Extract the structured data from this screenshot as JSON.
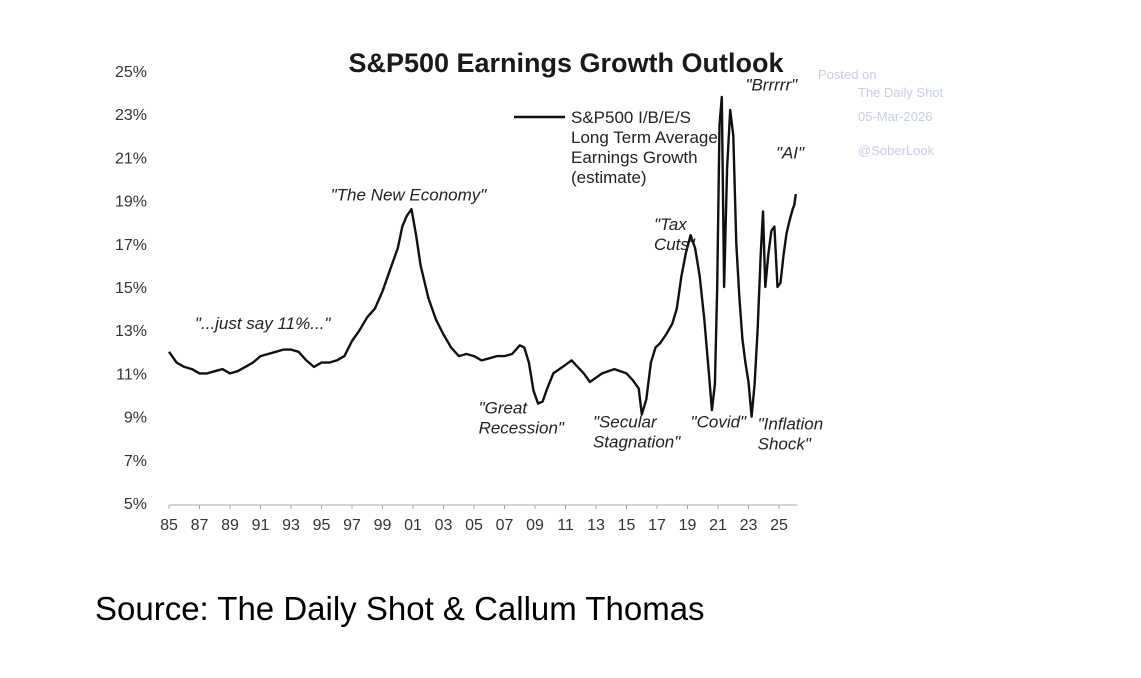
{
  "source": "Source: The Daily Shot & Callum Thomas",
  "watermark": [
    "Posted on",
    "The Daily Shot",
    "05-Mar-2026",
    "@SoberLook"
  ],
  "chart_data": {
    "type": "line",
    "title": "S&P500 Earnings Growth Outlook",
    "xlabel": "",
    "ylabel": "",
    "x_range": [
      1985,
      2026.2
    ],
    "ylim": [
      5,
      25
    ],
    "y_ticks": [
      "5%",
      "7%",
      "9%",
      "11%",
      "13%",
      "15%",
      "17%",
      "19%",
      "21%",
      "23%",
      "25%"
    ],
    "x_ticks": [
      "85",
      "87",
      "89",
      "91",
      "93",
      "95",
      "97",
      "99",
      "01",
      "03",
      "05",
      "07",
      "09",
      "11",
      "13",
      "15",
      "17",
      "19",
      "21",
      "23",
      "25"
    ],
    "grid": false,
    "legend_position": "top-center",
    "series": [
      {
        "name": "S&P500 I/B/E/S Long Term Average Earnings Growth (estimate)",
        "color": "#111111",
        "x": [
          1985.0,
          1985.5,
          1986.0,
          1986.5,
          1987.0,
          1987.5,
          1988.0,
          1988.5,
          1989.0,
          1989.5,
          1990.0,
          1990.5,
          1991.0,
          1991.5,
          1992.0,
          1992.5,
          1993.0,
          1993.5,
          1994.0,
          1994.5,
          1995.0,
          1995.5,
          1996.0,
          1996.5,
          1997.0,
          1997.5,
          1998.0,
          1998.5,
          1999.0,
          1999.5,
          2000.0,
          2000.3,
          2000.6,
          2000.9,
          2001.2,
          2001.5,
          2002.0,
          2002.5,
          2003.0,
          2003.5,
          2004.0,
          2004.5,
          2005.0,
          2005.5,
          2006.0,
          2006.5,
          2007.0,
          2007.5,
          2008.0,
          2008.3,
          2008.6,
          2008.9,
          2009.2,
          2009.5,
          2009.8,
          2010.2,
          2010.6,
          2011.0,
          2011.4,
          2011.8,
          2012.2,
          2012.6,
          2013.0,
          2013.4,
          2013.8,
          2014.2,
          2014.6,
          2015.0,
          2015.4,
          2015.8,
          2016.0,
          2016.3,
          2016.6,
          2016.9,
          2017.2,
          2017.6,
          2018.0,
          2018.3,
          2018.6,
          2018.9,
          2019.2,
          2019.5,
          2019.8,
          2020.1,
          2020.4,
          2020.6,
          2020.8,
          2020.95,
          2021.1,
          2021.25,
          2021.4,
          2021.6,
          2021.8,
          2022.0,
          2022.2,
          2022.4,
          2022.6,
          2022.8,
          2023.0,
          2023.2,
          2023.4,
          2023.6,
          2023.8,
          2023.95,
          2024.1,
          2024.3,
          2024.5,
          2024.7,
          2024.9,
          2025.1,
          2025.3,
          2025.5,
          2025.7,
          2025.9,
          2026.0,
          2026.1
        ],
        "values": [
          12.0,
          11.5,
          11.3,
          11.2,
          11.0,
          11.0,
          11.1,
          11.2,
          11.0,
          11.1,
          11.3,
          11.5,
          11.8,
          11.9,
          12.0,
          12.1,
          12.1,
          12.0,
          11.6,
          11.3,
          11.5,
          11.5,
          11.6,
          11.8,
          12.5,
          13.0,
          13.6,
          14.0,
          14.8,
          15.8,
          16.8,
          17.8,
          18.3,
          18.6,
          17.4,
          16.0,
          14.5,
          13.5,
          12.8,
          12.2,
          11.8,
          11.9,
          11.8,
          11.6,
          11.7,
          11.8,
          11.8,
          11.9,
          12.3,
          12.2,
          11.5,
          10.2,
          9.6,
          9.7,
          10.3,
          11.0,
          11.2,
          11.4,
          11.6,
          11.3,
          11.0,
          10.6,
          10.8,
          11.0,
          11.1,
          11.2,
          11.1,
          11.0,
          10.7,
          10.3,
          9.1,
          9.8,
          11.5,
          12.2,
          12.4,
          12.8,
          13.3,
          14.0,
          15.5,
          16.6,
          17.4,
          16.8,
          15.5,
          13.5,
          11.0,
          9.3,
          10.5,
          15.0,
          22.5,
          23.8,
          15.0,
          20.5,
          23.2,
          22.0,
          17.0,
          14.5,
          12.6,
          11.5,
          10.6,
          9.0,
          10.5,
          13.0,
          16.5,
          18.5,
          15.0,
          16.5,
          17.6,
          17.8,
          15.0,
          15.2,
          16.5,
          17.5,
          18.1,
          18.6,
          18.8,
          19.3
        ]
      }
    ],
    "annotations": [
      {
        "lines": [
          "\"...just say 11%...\""
        ],
        "x": 1986.7,
        "y": 13.05
      },
      {
        "lines": [
          "\"The New Economy\""
        ],
        "x": 1995.6,
        "y": 19.0
      },
      {
        "lines": [
          "\"Great",
          "Recession\""
        ],
        "x": 2005.3,
        "y": 9.15
      },
      {
        "lines": [
          "\"Secular",
          "Stagnation\""
        ],
        "x": 2012.8,
        "y": 8.5
      },
      {
        "lines": [
          "\"Tax",
          "Cuts\""
        ],
        "x": 2016.8,
        "y": 17.65
      },
      {
        "lines": [
          "\"Covid\""
        ],
        "x": 2019.2,
        "y": 8.5
      },
      {
        "lines": [
          "\"Brrrrr\""
        ],
        "x": 2022.8,
        "y": 24.1
      },
      {
        "lines": [
          "\"AI\""
        ],
        "x": 2024.8,
        "y": 20.95
      },
      {
        "lines": [
          "\"Inflation",
          "Shock\""
        ],
        "x": 2023.6,
        "y": 8.4
      }
    ]
  }
}
